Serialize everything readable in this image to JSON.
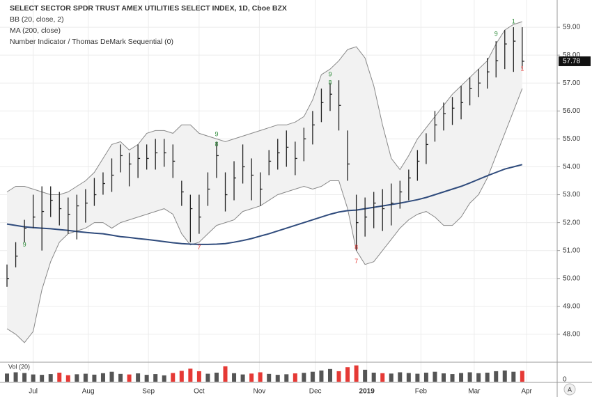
{
  "chart_data": {
    "type": "ohlc",
    "title": "SELECT SECTOR SPDR TRUST AMEX UTILITIES SELECT INDEX, 1D, Cboe BZX",
    "indicators": [
      "BB (20, close, 2)",
      "MA (200, close)",
      "Number Indicator / Thomas DeMark Sequential (0)"
    ],
    "bar_color": "#222222",
    "low": [
      49.7,
      50.4,
      51.3,
      51.8,
      51.0,
      52.2,
      51.9,
      51.6,
      51.4,
      52.0,
      52.6,
      53.0,
      53.1,
      53.8,
      53.3,
      53.6,
      53.9,
      53.9,
      54.0,
      53.6,
      52.6,
      51.3,
      51.6,
      52.6,
      53.6,
      52.4,
      52.8,
      53.4,
      52.8,
      52.6,
      53.7,
      53.9,
      54.0,
      53.7,
      54.2,
      54.8,
      55.6,
      56.0,
      55.3,
      53.5,
      51.0,
      51.5,
      51.8,
      51.7,
      51.9,
      52.5,
      52.8,
      53.5,
      54.1,
      54.9,
      55.3,
      55.5,
      55.7,
      56.2,
      56.5,
      56.8,
      57.2,
      57.5,
      57.4,
      57.5
    ],
    "high": [
      50.5,
      51.3,
      52.1,
      53.0,
      53.3,
      53.3,
      53.1,
      52.9,
      53.0,
      53.2,
      53.6,
      53.8,
      54.3,
      54.8,
      54.5,
      54.8,
      54.8,
      55.0,
      55.0,
      54.8,
      53.5,
      53.0,
      53.0,
      53.8,
      54.9,
      53.8,
      54.2,
      54.8,
      54.3,
      53.8,
      54.6,
      55.0,
      55.3,
      54.9,
      55.4,
      56.0,
      56.8,
      57.0,
      57.1,
      55.3,
      53.0,
      52.9,
      53.1,
      53.2,
      53.4,
      53.5,
      53.9,
      54.6,
      55.2,
      56.0,
      56.3,
      56.5,
      56.9,
      57.2,
      57.5,
      57.9,
      58.5,
      58.9,
      59.0,
      59.0
    ],
    "close": [
      50.0,
      50.8,
      51.8,
      52.2,
      52.4,
      52.8,
      52.5,
      52.3,
      52.6,
      52.7,
      53.0,
      53.4,
      53.7,
      54.4,
      54.1,
      54.3,
      54.3,
      54.5,
      54.5,
      54.2,
      53.1,
      52.5,
      52.2,
      53.2,
      54.4,
      53.0,
      53.6,
      54.0,
      53.7,
      53.2,
      54.2,
      54.5,
      54.7,
      54.3,
      55.0,
      55.5,
      56.3,
      56.6,
      56.2,
      54.1,
      52.0,
      52.2,
      52.7,
      52.5,
      52.7,
      53.1,
      53.6,
      54.2,
      54.8,
      55.5,
      55.9,
      56.1,
      56.3,
      56.8,
      57.0,
      57.4,
      57.8,
      58.4,
      58.5,
      57.78
    ],
    "bollinger": {
      "color": "#888888",
      "fill": "#f2f2f2",
      "upper": [
        53.1,
        53.3,
        53.3,
        53.2,
        53.1,
        53.0,
        53.0,
        53.1,
        53.3,
        53.5,
        53.8,
        54.3,
        54.8,
        54.9,
        54.6,
        54.8,
        55.2,
        55.3,
        55.3,
        55.2,
        55.5,
        55.5,
        55.2,
        55.1,
        55.0,
        54.9,
        55.0,
        55.1,
        55.2,
        55.3,
        55.4,
        55.5,
        55.5,
        55.6,
        55.8,
        56.4,
        57.3,
        57.5,
        57.8,
        58.2,
        58.3,
        57.9,
        56.9,
        55.5,
        54.3,
        53.9,
        54.4,
        55.0,
        55.4,
        55.8,
        56.2,
        56.6,
        56.9,
        57.2,
        57.5,
        57.8,
        58.4,
        58.9,
        59.1,
        59.2
      ],
      "lower": [
        48.2,
        48.0,
        47.7,
        48.1,
        49.6,
        50.6,
        51.3,
        51.6,
        51.7,
        51.8,
        52.0,
        52.0,
        51.8,
        52.0,
        52.1,
        52.2,
        52.3,
        52.4,
        52.5,
        52.3,
        51.6,
        51.2,
        51.3,
        51.6,
        51.9,
        52.0,
        52.1,
        52.4,
        52.5,
        52.6,
        52.8,
        53.0,
        53.1,
        53.2,
        53.3,
        53.2,
        53.3,
        53.5,
        53.5,
        52.5,
        51.0,
        50.5,
        50.6,
        51.0,
        51.4,
        51.8,
        52.1,
        52.3,
        52.4,
        52.2,
        51.9,
        51.9,
        52.2,
        52.7,
        53.0,
        53.6,
        54.4,
        55.2,
        56.0,
        56.8
      ]
    },
    "ma": {
      "color": "#2f4b7c",
      "values": [
        51.95,
        51.9,
        51.85,
        51.82,
        51.8,
        51.78,
        51.75,
        51.72,
        51.68,
        51.65,
        51.62,
        51.6,
        51.55,
        51.5,
        51.47,
        51.43,
        51.4,
        51.36,
        51.32,
        51.28,
        51.25,
        51.23,
        51.22,
        51.22,
        51.23,
        51.25,
        51.3,
        51.36,
        51.43,
        51.52,
        51.6,
        51.7,
        51.8,
        51.9,
        52.0,
        52.1,
        52.2,
        52.3,
        52.38,
        52.43,
        52.45,
        52.5,
        52.55,
        52.6,
        52.65,
        52.7,
        52.76,
        52.82,
        52.9,
        53.0,
        53.1,
        53.2,
        53.3,
        53.42,
        53.55,
        53.68,
        53.8,
        53.92,
        54.0,
        54.08
      ]
    },
    "annotations": [
      {
        "index": 2,
        "price": 51.2,
        "text": "9",
        "color": "#2e8b3a"
      },
      {
        "index": 24,
        "price": 55.15,
        "text": "9",
        "color": "#2e8b3a"
      },
      {
        "index": 24,
        "price": 54.8,
        "text": "8",
        "color": "#2e8b3a"
      },
      {
        "index": 37,
        "price": 57.3,
        "text": "9",
        "color": "#2e8b3a"
      },
      {
        "index": 37,
        "price": 57.0,
        "text": "8",
        "color": "#2e8b3a"
      },
      {
        "index": 22,
        "price": 51.1,
        "text": "7",
        "color": "#e53935"
      },
      {
        "index": 40,
        "price": 50.6,
        "text": "7",
        "color": "#e53935"
      },
      {
        "index": 40,
        "price": 51.1,
        "text": "8",
        "color": "#e53935"
      },
      {
        "index": 56,
        "price": 58.75,
        "text": "9",
        "color": "#2e8b3a"
      },
      {
        "index": 58,
        "price": 59.2,
        "text": "1",
        "color": "#2e8b3a"
      },
      {
        "index": 59,
        "price": 57.5,
        "text": "1",
        "color": "#e53935"
      }
    ],
    "xlim": [
      -0.8,
      63
    ],
    "xticks": [
      {
        "value": 3,
        "label": "Jul"
      },
      {
        "value": 9.3,
        "label": "Aug"
      },
      {
        "value": 16.2,
        "label": "Sep"
      },
      {
        "value": 22,
        "label": "Oct"
      },
      {
        "value": 28.9,
        "label": "Nov"
      },
      {
        "value": 35.3,
        "label": "Dec"
      },
      {
        "value": 41.2,
        "label": "2019"
      },
      {
        "value": 47.4,
        "label": "Feb"
      },
      {
        "value": 53.5,
        "label": "Mar"
      },
      {
        "value": 59.5,
        "label": "Apr"
      }
    ],
    "ylim": [
      47.05,
      59.85
    ],
    "yticks": [
      {
        "value": 48,
        "label": "48.00"
      },
      {
        "value": 49,
        "label": "49.00"
      },
      {
        "value": 50,
        "label": "50.00"
      },
      {
        "value": 51,
        "label": "51.00"
      },
      {
        "value": 52,
        "label": "52.00"
      },
      {
        "value": 53,
        "label": "53.00"
      },
      {
        "value": 54,
        "label": "54.00"
      },
      {
        "value": 55,
        "label": "55.00"
      },
      {
        "value": 56,
        "label": "56.00"
      },
      {
        "value": 57,
        "label": "57.00"
      },
      {
        "value": 58,
        "label": "58.00"
      },
      {
        "value": 59,
        "label": "59.00"
      }
    ],
    "grid": true,
    "volume": {
      "label": "Vol (20)",
      "up_color": "#555555",
      "down_color": "#e53935",
      "ylim": [
        0,
        100
      ],
      "yticks": [
        0
      ],
      "values": [
        45,
        52,
        48,
        40,
        38,
        42,
        50,
        36,
        41,
        44,
        39,
        47,
        55,
        43,
        40,
        46,
        38,
        42,
        35,
        48,
        60,
        72,
        58,
        44,
        50,
        85,
        47,
        40,
        45,
        52,
        43,
        38,
        41,
        46,
        49,
        55,
        62,
        70,
        58,
        80,
        90,
        66,
        50,
        47,
        45,
        52,
        48,
        44,
        50,
        55,
        46,
        42,
        48,
        52,
        47,
        50,
        58,
        62,
        55,
        60
      ]
    },
    "button": "A"
  }
}
